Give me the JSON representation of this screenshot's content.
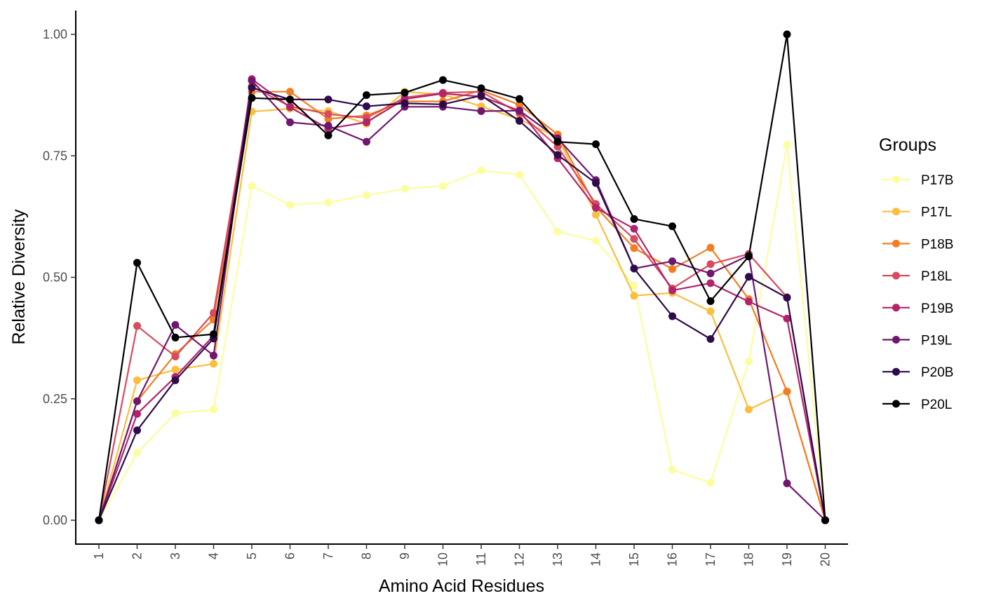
{
  "chart_data": {
    "type": "line",
    "title": "",
    "xlabel": "Amino Acid Residues",
    "ylabel": "Relative Diversity",
    "legend_title": "Groups",
    "legend_position": "right",
    "grid": false,
    "categories": [
      "1",
      "2",
      "3",
      "4",
      "5",
      "6",
      "7",
      "8",
      "9",
      "10",
      "11",
      "12",
      "13",
      "14",
      "15",
      "16",
      "17",
      "18",
      "19",
      "20"
    ],
    "ylim": [
      0,
      1
    ],
    "yticks": [
      0,
      0.25,
      0.5,
      0.75,
      1
    ],
    "ytick_labels": [
      "0.00",
      "0.25",
      "0.50",
      "0.75",
      "1.00"
    ],
    "series": [
      {
        "name": "P17B",
        "color": "#fcfd9f",
        "values": [
          0,
          0.139,
          0.22,
          0.228,
          0.688,
          0.649,
          0.654,
          0.669,
          0.682,
          0.688,
          0.72,
          0.711,
          0.594,
          0.575,
          0.483,
          0.104,
          0.077,
          0.327,
          0.773,
          0
        ]
      },
      {
        "name": "P17L",
        "color": "#fbbe3f",
        "values": [
          0,
          0.288,
          0.31,
          0.322,
          0.841,
          0.847,
          0.842,
          0.816,
          0.882,
          0.876,
          0.852,
          0.825,
          0.788,
          0.629,
          0.462,
          0.468,
          0.43,
          0.228,
          0.265,
          0
        ]
      },
      {
        "name": "P18B",
        "color": "#f37d21",
        "values": [
          0,
          0.245,
          0.342,
          0.413,
          0.882,
          0.882,
          0.826,
          0.833,
          0.862,
          0.862,
          0.885,
          0.855,
          0.794,
          0.645,
          0.56,
          0.517,
          0.561,
          0.455,
          0.265,
          0
        ]
      },
      {
        "name": "P18L",
        "color": "#d84a5f",
        "values": [
          0,
          0.4,
          0.337,
          0.427,
          0.893,
          0.852,
          0.836,
          0.828,
          0.87,
          0.88,
          0.882,
          0.838,
          0.769,
          0.651,
          0.579,
          0.477,
          0.527,
          0.548,
          0.459,
          0
        ]
      },
      {
        "name": "P19B",
        "color": "#b1246c",
        "values": [
          0,
          0.219,
          0.295,
          0.38,
          0.908,
          0.85,
          0.806,
          0.819,
          0.867,
          0.878,
          0.872,
          0.843,
          0.745,
          0.643,
          0.6,
          0.473,
          0.488,
          0.45,
          0.415,
          0
        ]
      },
      {
        "name": "P19L",
        "color": "#6f176e",
        "values": [
          0,
          0.245,
          0.402,
          0.339,
          0.905,
          0.819,
          0.812,
          0.779,
          0.851,
          0.851,
          0.842,
          0.843,
          0.786,
          0.7,
          0.518,
          0.533,
          0.508,
          0.545,
          0.076,
          0
        ]
      },
      {
        "name": "P20B",
        "color": "#2e0c4a",
        "values": [
          0,
          0.185,
          0.288,
          0.374,
          0.89,
          0.866,
          0.866,
          0.852,
          0.858,
          0.856,
          0.874,
          0.822,
          0.752,
          0.694,
          0.518,
          0.42,
          0.373,
          0.501,
          0.458,
          0
        ]
      },
      {
        "name": "P20L",
        "color": "#000004",
        "values": [
          0,
          0.53,
          0.376,
          0.383,
          0.869,
          0.866,
          0.792,
          0.875,
          0.88,
          0.906,
          0.889,
          0.867,
          0.779,
          0.774,
          0.62,
          0.605,
          0.451,
          0.543,
          1.0,
          0
        ]
      }
    ]
  }
}
